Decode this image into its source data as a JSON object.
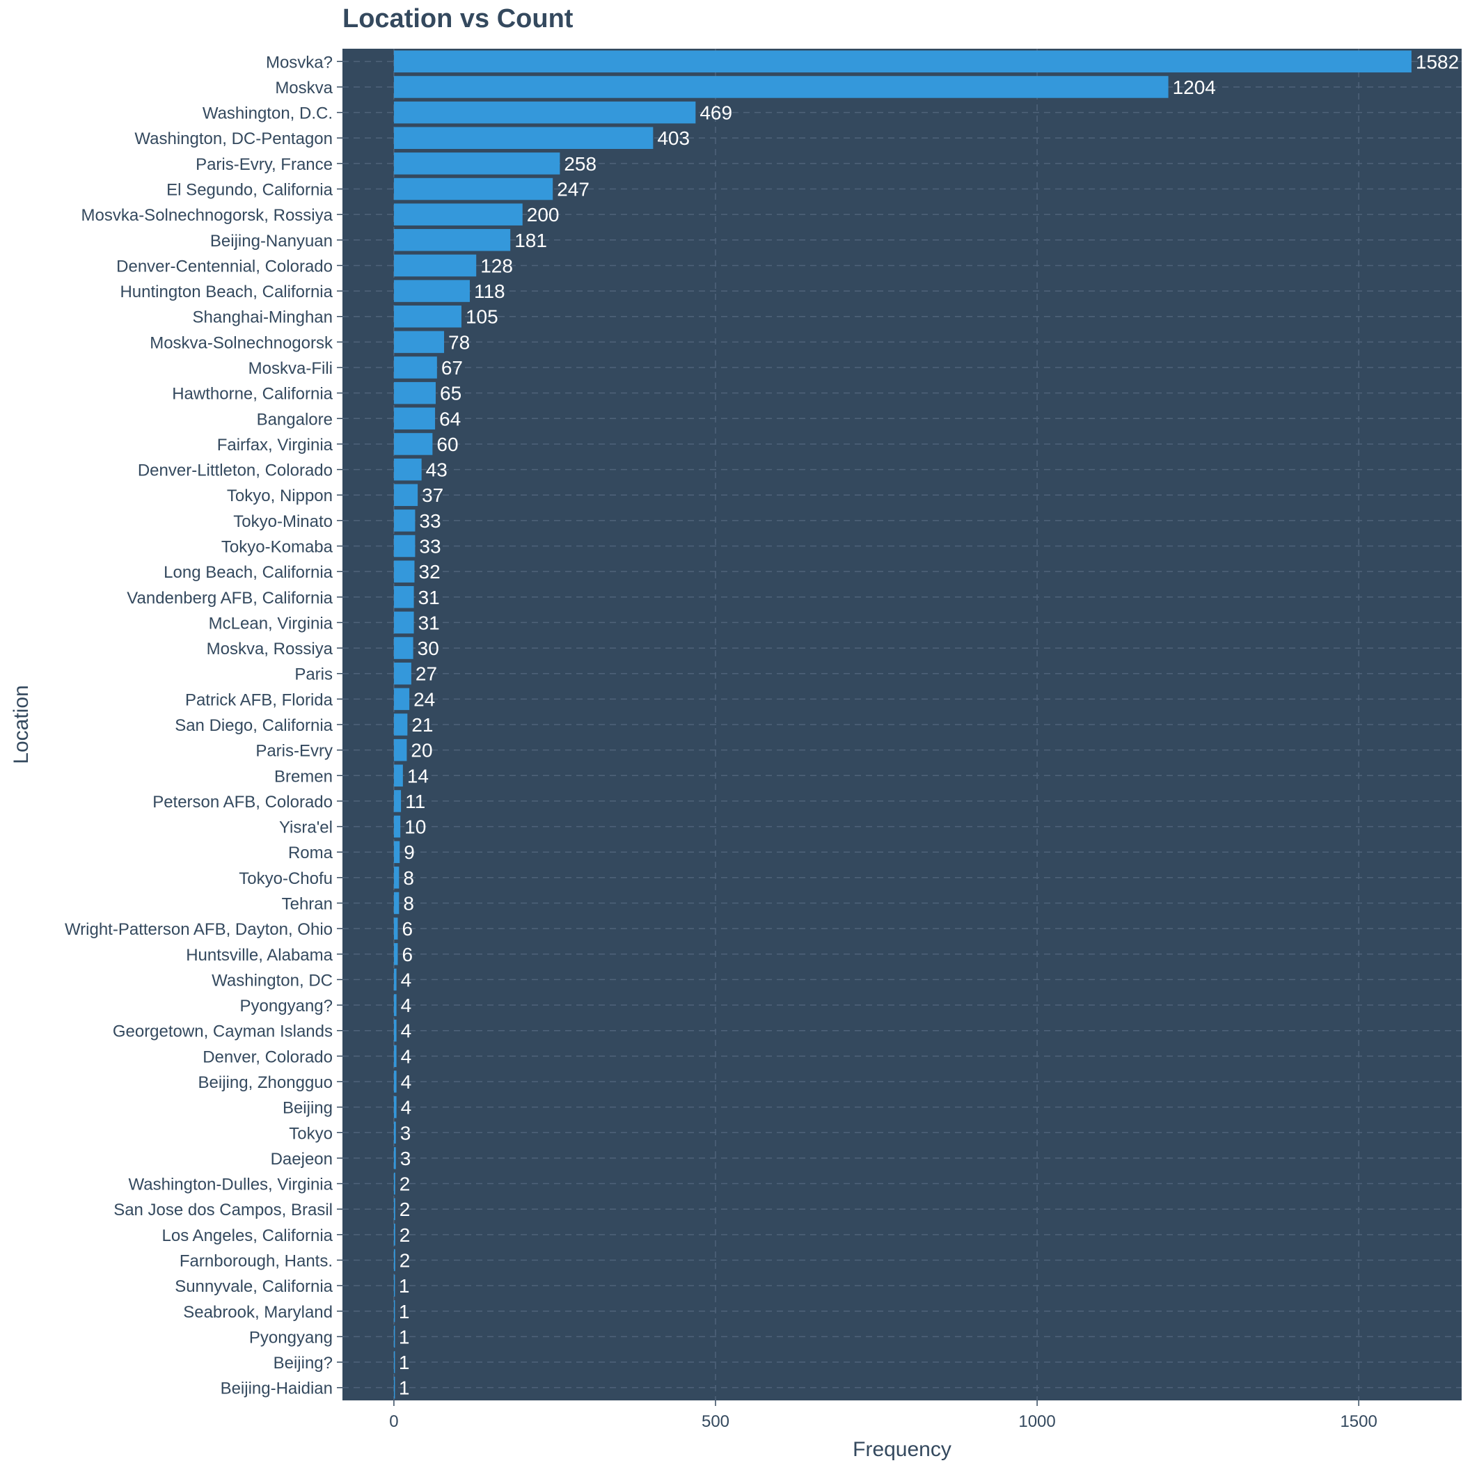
{
  "chart_data": {
    "type": "bar",
    "orientation": "horizontal",
    "title": "Location vs Count",
    "xlabel": "Frequency",
    "ylabel": "Location",
    "xlim": [
      -80,
      1660
    ],
    "xticks": [
      0,
      500,
      1000,
      1500
    ],
    "grid": true,
    "colors": {
      "background": "#34495e",
      "bar": "#3498db",
      "text": "#34495e",
      "label": "#ffffff",
      "grid": "#4f637a"
    },
    "categories": [
      "Mosvka?",
      "Moskva",
      "Washington, D.C.",
      "Washington, DC-Pentagon",
      "Paris-Evry, France",
      "El Segundo, California",
      "Mosvka-Solnechnogorsk, Rossiya",
      "Beijing-Nanyuan",
      "Denver-Centennial, Colorado",
      "Huntington Beach, California",
      "Shanghai-Minghan",
      "Moskva-Solnechnogorsk",
      "Moskva-Fili",
      "Hawthorne, California",
      "Bangalore",
      "Fairfax, Virginia",
      "Denver-Littleton, Colorado",
      "Tokyo, Nippon",
      "Tokyo-Minato",
      "Tokyo-Komaba",
      "Long Beach, California",
      "Vandenberg AFB, California",
      "McLean, Virginia",
      "Moskva, Rossiya",
      "Paris",
      "Patrick AFB, Florida",
      "San Diego, California",
      "Paris-Evry",
      "Bremen",
      "Peterson AFB, Colorado",
      "Yisra'el",
      "Roma",
      "Tokyo-Chofu",
      "Tehran",
      "Wright-Patterson AFB, Dayton, Ohio",
      "Huntsville, Alabama",
      "Washington, DC",
      "Pyongyang?",
      "Georgetown, Cayman Islands",
      "Denver, Colorado",
      "Beijing, Zhongguo",
      "Beijing",
      "Tokyo",
      "Daejeon",
      "Washington-Dulles, Virginia",
      "San Jose dos Campos, Brasil",
      "Los Angeles, California",
      "Farnborough, Hants.",
      "Sunnyvale, California",
      "Seabrook, Maryland",
      "Pyongyang",
      "Beijing?",
      "Beijing-Haidian"
    ],
    "values": [
      1582,
      1204,
      469,
      403,
      258,
      247,
      200,
      181,
      128,
      118,
      105,
      78,
      67,
      65,
      64,
      60,
      43,
      37,
      33,
      33,
      32,
      31,
      31,
      30,
      27,
      24,
      21,
      20,
      14,
      11,
      10,
      9,
      8,
      8,
      6,
      6,
      4,
      4,
      4,
      4,
      4,
      4,
      3,
      3,
      2,
      2,
      2,
      2,
      1,
      1,
      1,
      1,
      1
    ]
  }
}
